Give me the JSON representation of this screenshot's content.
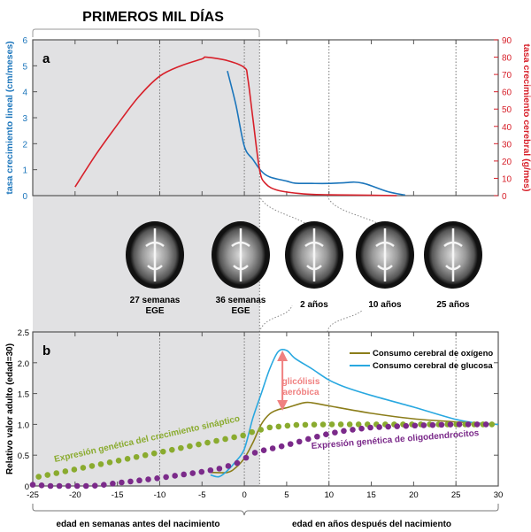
{
  "header": {
    "title": "PRIMEROS MIL DÍAS"
  },
  "colors": {
    "blue": "#1b75bb",
    "red": "#d7202a",
    "olive": "#8b7d1a",
    "cyan": "#29a8e0",
    "green": "#8aab2f",
    "purple": "#7b2a8a",
    "pink": "#f08080",
    "shade": "#e1e1e3"
  },
  "panel_a": {
    "label": "a"
  },
  "panel_b": {
    "label": "b"
  },
  "brains": [
    {
      "label1": "27 semanas",
      "label2": "EGE"
    },
    {
      "label1": "36 semanas",
      "label2": "EGE"
    },
    {
      "label1": "2 años",
      "label2": ""
    },
    {
      "label1": "10 años",
      "label2": ""
    },
    {
      "label1": "25 años",
      "label2": ""
    }
  ],
  "xaxis": {
    "prenatal_label": "edad en semanas antes del nacimiento",
    "postnatal_label": "edad en años después del nacimiento"
  },
  "chart_data": [
    {
      "type": "line",
      "title": "a",
      "xlim": [
        -25,
        30
      ],
      "xticks": [
        -25,
        -20,
        -15,
        -10,
        -5,
        0,
        5,
        10,
        15,
        20,
        25,
        30
      ],
      "ylabel": "tasa crecimiento lineal (cm/meses)",
      "ylim": [
        0,
        6
      ],
      "yticks": [
        "0",
        "1",
        "2",
        "3",
        "4",
        "5",
        "6"
      ],
      "y2label": "tasa crecimiento cerebral (g/mes)",
      "y2lim": [
        0,
        90
      ],
      "y2ticks": [
        "0",
        "10",
        "20",
        "30",
        "40",
        "50",
        "60",
        "70",
        "80",
        "90"
      ],
      "shaded_until": 1.8,
      "vlines": [
        -10,
        0,
        10,
        25
      ],
      "series": [
        {
          "name": "tasa crecimiento lineal",
          "axis": "left",
          "color": "#1b75bb",
          "points": [
            [
              -2,
              4.8
            ],
            [
              -1,
              3.5
            ],
            [
              0,
              1.9
            ],
            [
              1,
              1.4
            ],
            [
              2,
              0.95
            ],
            [
              3,
              0.72
            ],
            [
              5,
              0.56
            ],
            [
              6,
              0.48
            ],
            [
              8,
              0.47
            ],
            [
              10,
              0.47
            ],
            [
              12,
              0.5
            ],
            [
              13,
              0.52
            ],
            [
              14,
              0.48
            ],
            [
              15,
              0.38
            ],
            [
              17,
              0.15
            ],
            [
              19,
              0.02
            ]
          ]
        },
        {
          "name": "tasa crecimiento cerebral",
          "axis": "right",
          "color": "#d7202a",
          "points": [
            [
              -20,
              5
            ],
            [
              -17.5,
              24
            ],
            [
              -15,
              41
            ],
            [
              -12.5,
              57
            ],
            [
              -10,
              69
            ],
            [
              -7.5,
              75
            ],
            [
              -5,
              79
            ],
            [
              -4.5,
              80
            ],
            [
              -2,
              78
            ],
            [
              0,
              74
            ],
            [
              0.4,
              68
            ],
            [
              1,
              45
            ],
            [
              1.8,
              15
            ],
            [
              2.5,
              7
            ],
            [
              4,
              3
            ],
            [
              7,
              1
            ],
            [
              10,
              0.5
            ],
            [
              15,
              0.2
            ],
            [
              18,
              0
            ]
          ]
        }
      ]
    },
    {
      "type": "line",
      "title": "b",
      "xlim": [
        -25,
        30
      ],
      "xticks": [
        "-25",
        "-20",
        "-15",
        "-10",
        "-5",
        "0",
        "5",
        "10",
        "15",
        "20",
        "25",
        "30"
      ],
      "ylabel": "Relativo valor adulto (edad=30)",
      "ylim": [
        0,
        2.5
      ],
      "yticks": [
        "0",
        "0.5",
        "1.0",
        "1.5",
        "2.0",
        "2.5"
      ],
      "legend": "top-right",
      "series": [
        {
          "name": "Consumo cerebral de oxígeno",
          "color": "#8b7d1a",
          "points": [
            [
              -4,
              0.22
            ],
            [
              -2,
              0.22
            ],
            [
              -1,
              0.3
            ],
            [
              0,
              0.45
            ],
            [
              1,
              0.7
            ],
            [
              2,
              1.0
            ],
            [
              3,
              1.17
            ],
            [
              4,
              1.24
            ],
            [
              5,
              1.27
            ],
            [
              7,
              1.35
            ],
            [
              8,
              1.35
            ],
            [
              10,
              1.3
            ],
            [
              15,
              1.18
            ],
            [
              20,
              1.09
            ],
            [
              25,
              1.04
            ],
            [
              30,
              1.0
            ]
          ]
        },
        {
          "name": "Consumo cerebral de glucosa",
          "color": "#29a8e0",
          "points": [
            [
              -4,
              0.18
            ],
            [
              -3,
              0.15
            ],
            [
              -2,
              0.25
            ],
            [
              -1,
              0.4
            ],
            [
              0,
              0.6
            ],
            [
              1,
              1.1
            ],
            [
              2,
              1.5
            ],
            [
              3,
              1.9
            ],
            [
              4,
              2.18
            ],
            [
              5,
              2.2
            ],
            [
              6,
              2.07
            ],
            [
              8,
              1.9
            ],
            [
              10,
              1.72
            ],
            [
              12,
              1.6
            ],
            [
              15,
              1.47
            ],
            [
              20,
              1.28
            ],
            [
              25,
              1.08
            ],
            [
              28,
              1.01
            ],
            [
              30,
              1.0
            ]
          ]
        },
        {
          "name": "Expresión genética del crecimiento sináptico",
          "style": "dots",
          "color": "#8aab2f",
          "dot_step": 1.05,
          "points": [
            [
              -24.3,
              0.15
            ],
            [
              -0.15,
              0.82
            ],
            [
              1,
              0.88
            ],
            [
              3,
              0.95
            ],
            [
              6,
              0.99
            ],
            [
              10,
              1.0
            ],
            [
              29.5,
              1.0
            ]
          ]
        },
        {
          "name": "Expresión genética de oligodendrocitos",
          "style": "dots",
          "color": "#7b2a8a",
          "dot_step": 1.05,
          "points": [
            [
              -25,
              0.02
            ],
            [
              -23,
              0.0
            ],
            [
              -18,
              0.0
            ],
            [
              -16.5,
              0.02
            ],
            [
              -15,
              0.05
            ],
            [
              -13,
              0.08
            ],
            [
              -10,
              0.13
            ],
            [
              -8,
              0.17
            ],
            [
              -5,
              0.23
            ],
            [
              -3,
              0.28
            ],
            [
              -1,
              0.36
            ],
            [
              0,
              0.44
            ],
            [
              1,
              0.53
            ],
            [
              2,
              0.57
            ],
            [
              4,
              0.63
            ],
            [
              6,
              0.7
            ],
            [
              8,
              0.78
            ],
            [
              10,
              0.85
            ],
            [
              12,
              0.9
            ],
            [
              15,
              0.95
            ],
            [
              20,
              0.98
            ],
            [
              25,
              1.0
            ],
            [
              29.5,
              1.0
            ]
          ]
        }
      ],
      "annotation": {
        "line1": "glicólisis",
        "line2": "aeróbica",
        "x": 4.5,
        "from": 1.25,
        "to": 2.17
      }
    }
  ]
}
